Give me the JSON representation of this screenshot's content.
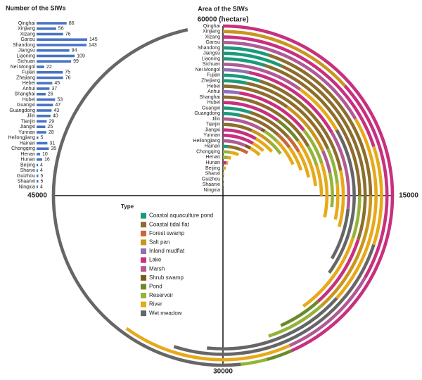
{
  "chart_data": [
    {
      "type": "bar",
      "orientation": "horizontal",
      "title": "Number of the SIWs",
      "color": "#4a74c4",
      "categories": [
        "Qinghai",
        "Xinjiang",
        "Xizang",
        "Gansu",
        "Shandong",
        "Jiangsu",
        "Liaoning",
        "Sichuan",
        "Nei Mongol",
        "Fujian",
        "Zhejiang",
        "Hebei",
        "Anhui",
        "Shanghai",
        "Hubei",
        "Guangxi",
        "Guangdong",
        "Jilin",
        "Tianjin",
        "Jiangxi",
        "Yunnan",
        "Heilongjiang",
        "Hainan",
        "Chongqing",
        "Henan",
        "Hunan",
        "Beijing",
        "Shanxi",
        "Guizhou",
        "Shaanxi",
        "Ningxia"
      ],
      "values": [
        86,
        56,
        76,
        145,
        143,
        94,
        109,
        99,
        22,
        75,
        76,
        45,
        37,
        26,
        53,
        47,
        43,
        40,
        29,
        25,
        28,
        5,
        31,
        35,
        10,
        16,
        4,
        4,
        5,
        5,
        4
      ]
    },
    {
      "type": "radial_bar",
      "title": "Area of the SIWs",
      "legend_title": "Type",
      "categories": [
        "Qinghai",
        "Xinjiang",
        "Xizang",
        "Gansu",
        "Shandong",
        "Jiangsu",
        "Liaoning",
        "Sichuan",
        "Nei Mongol",
        "Fujian",
        "Zhejiang",
        "Hebei",
        "Anhui",
        "Shanghai",
        "Hubei",
        "Guangxi",
        "Guangdong",
        "Jilin",
        "Tianjin",
        "Jiangxi",
        "Yunnan",
        "Heilongjiang",
        "Hainan",
        "Chongqing",
        "Henan",
        "Hunan",
        "Beijing",
        "Shanxi",
        "Guizhou",
        "Shaanxi",
        "Ningxia"
      ],
      "xlim": [
        0,
        60000
      ],
      "xticks": [
        15000,
        30000,
        45000,
        {
          "value": 60000,
          "label": "60000 (hectare)"
        }
      ],
      "series": [
        {
          "name": "Coastal aquaculture pond",
          "color": "#1a9a7a",
          "values": [
            0,
            0,
            0,
            0,
            3000,
            4000,
            3000,
            0,
            0,
            3000,
            2000,
            0,
            0,
            0,
            0,
            3000,
            2000,
            0,
            0,
            0,
            0,
            0,
            1000,
            0,
            0,
            0,
            0,
            0,
            0,
            0,
            0
          ]
        },
        {
          "name": "Coastal tidal flat",
          "color": "#8c6d2c",
          "values": [
            0,
            0,
            0,
            0,
            12000,
            14000,
            12000,
            0,
            0,
            10000,
            9000,
            6000,
            0,
            10000,
            0,
            5000,
            5000,
            0,
            4000,
            0,
            0,
            0,
            2500,
            0,
            0,
            0,
            0,
            0,
            0,
            0,
            0
          ]
        },
        {
          "name": "Forest swamp",
          "color": "#c8673a",
          "values": [
            0,
            0,
            0,
            0,
            0,
            0,
            0,
            0,
            0,
            0,
            0,
            0,
            0,
            0,
            0,
            2000,
            2000,
            0,
            0,
            0,
            0,
            0,
            1500,
            0,
            0,
            0,
            0,
            0,
            0,
            0,
            0
          ]
        },
        {
          "name": "Salt pan",
          "color": "#c8961e",
          "values": [
            0,
            8000,
            0,
            0,
            8000,
            0,
            0,
            0,
            0,
            0,
            0,
            5000,
            0,
            0,
            0,
            0,
            0,
            0,
            3000,
            0,
            0,
            0,
            0,
            0,
            0,
            0,
            0,
            0,
            0,
            0,
            0
          ]
        },
        {
          "name": "Inland mudflat",
          "color": "#8e6fb8",
          "values": [
            0,
            0,
            0,
            0,
            0,
            0,
            0,
            0,
            2000,
            0,
            0,
            0,
            1500,
            0,
            0,
            0,
            0,
            0,
            0,
            0,
            0,
            0,
            0,
            0,
            0,
            0,
            0,
            0,
            0,
            0,
            0
          ]
        },
        {
          "name": "Lake",
          "color": "#c7307f",
          "values": [
            26000,
            12000,
            12000,
            0,
            0,
            5000,
            0,
            0,
            8000,
            0,
            0,
            0,
            7000,
            0,
            6000,
            0,
            0,
            0,
            0,
            5000,
            5000,
            0,
            0,
            0,
            0,
            1000,
            0,
            0,
            0,
            0,
            100
          ]
        },
        {
          "name": "Marsh",
          "color": "#b05a95",
          "values": [
            0,
            6000,
            0,
            10000,
            0,
            0,
            0,
            6000,
            6000,
            0,
            0,
            2000,
            0,
            0,
            0,
            0,
            0,
            5000,
            0,
            0,
            0,
            4000,
            0,
            0,
            0,
            0,
            0,
            0,
            0,
            0,
            0
          ]
        },
        {
          "name": "Shrub swamp",
          "color": "#7d5a1e",
          "values": [
            0,
            0,
            0,
            0,
            0,
            0,
            0,
            0,
            0,
            0,
            0,
            0,
            0,
            0,
            0,
            0,
            0,
            500,
            0,
            0,
            0,
            1000,
            0,
            0,
            0,
            0,
            0,
            0,
            0,
            0,
            0
          ]
        },
        {
          "name": "Pond",
          "color": "#6d8a2a",
          "values": [
            1500,
            0,
            0,
            0,
            0,
            3000,
            0,
            0,
            0,
            0,
            0,
            0,
            0,
            0,
            3000,
            0,
            0,
            0,
            0,
            0,
            0,
            0,
            0,
            0,
            0,
            0,
            0,
            0,
            0,
            0,
            0
          ]
        },
        {
          "name": "Reservoir",
          "color": "#94b33a",
          "values": [
            1500,
            0,
            0,
            0,
            4000,
            0,
            3000,
            0,
            0,
            0,
            3000,
            3000,
            3500,
            2000,
            0,
            0,
            0,
            2000,
            2000,
            0,
            0,
            0,
            0,
            1500,
            1200,
            0,
            600,
            300,
            300,
            0,
            0
          ]
        },
        {
          "name": "River",
          "color": "#e7a91a",
          "values": [
            0,
            10000,
            6000,
            12000,
            0,
            0,
            6000,
            4000,
            0,
            4500,
            3000,
            0,
            5000,
            3000,
            5000,
            3000,
            3000,
            3500,
            0,
            3000,
            2000,
            2000,
            0,
            2000,
            800,
            500,
            400,
            200,
            0,
            200,
            0
          ]
        },
        {
          "name": "Wet meadow",
          "color": "#666666",
          "values": [
            29000,
            0,
            15000,
            9000,
            0,
            0,
            0,
            11000,
            4000,
            0,
            0,
            0,
            0,
            0,
            0,
            0,
            0,
            0,
            0,
            0,
            0,
            0,
            0,
            0,
            0,
            0,
            0,
            0,
            0,
            0,
            0
          ]
        }
      ]
    }
  ]
}
